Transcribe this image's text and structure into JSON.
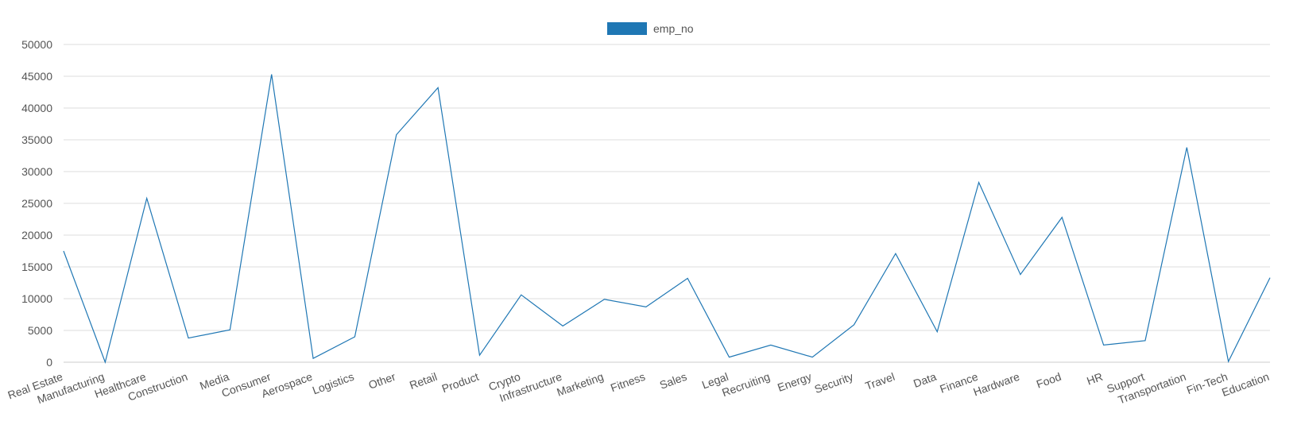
{
  "chart_data": {
    "type": "line",
    "categories": [
      "Real Estate",
      "Manufacturing",
      "Healthcare",
      "Construction",
      "Media",
      "Consumer",
      "Aerospace",
      "Logistics",
      "Other",
      "Retail",
      "Product",
      "Crypto",
      "Infrastructure",
      "Marketing",
      "Fitness",
      "Sales",
      "Legal",
      "Recruiting",
      "Energy",
      "Security",
      "Travel",
      "Data",
      "Finance",
      "Hardware",
      "Food",
      "HR",
      "Support",
      "Transportation",
      "Fin-Tech",
      "Education"
    ],
    "series": [
      {
        "name": "emp_no",
        "color": "#1f77b4",
        "values": [
          17500,
          0,
          25800,
          3800,
          5100,
          45300,
          600,
          4000,
          35800,
          43200,
          1100,
          10600,
          5700,
          9900,
          8700,
          13200,
          800,
          2700,
          800,
          5900,
          17100,
          4800,
          28300,
          13800,
          22800,
          2700,
          3400,
          33800,
          100,
          13300
        ]
      }
    ],
    "yticks": [
      "0",
      "5000",
      "10000",
      "15000",
      "20000",
      "25000",
      "30000",
      "35000",
      "40000",
      "45000",
      "50000"
    ],
    "ylim": [
      0,
      50000
    ],
    "grid": true,
    "legend": "top-center"
  }
}
